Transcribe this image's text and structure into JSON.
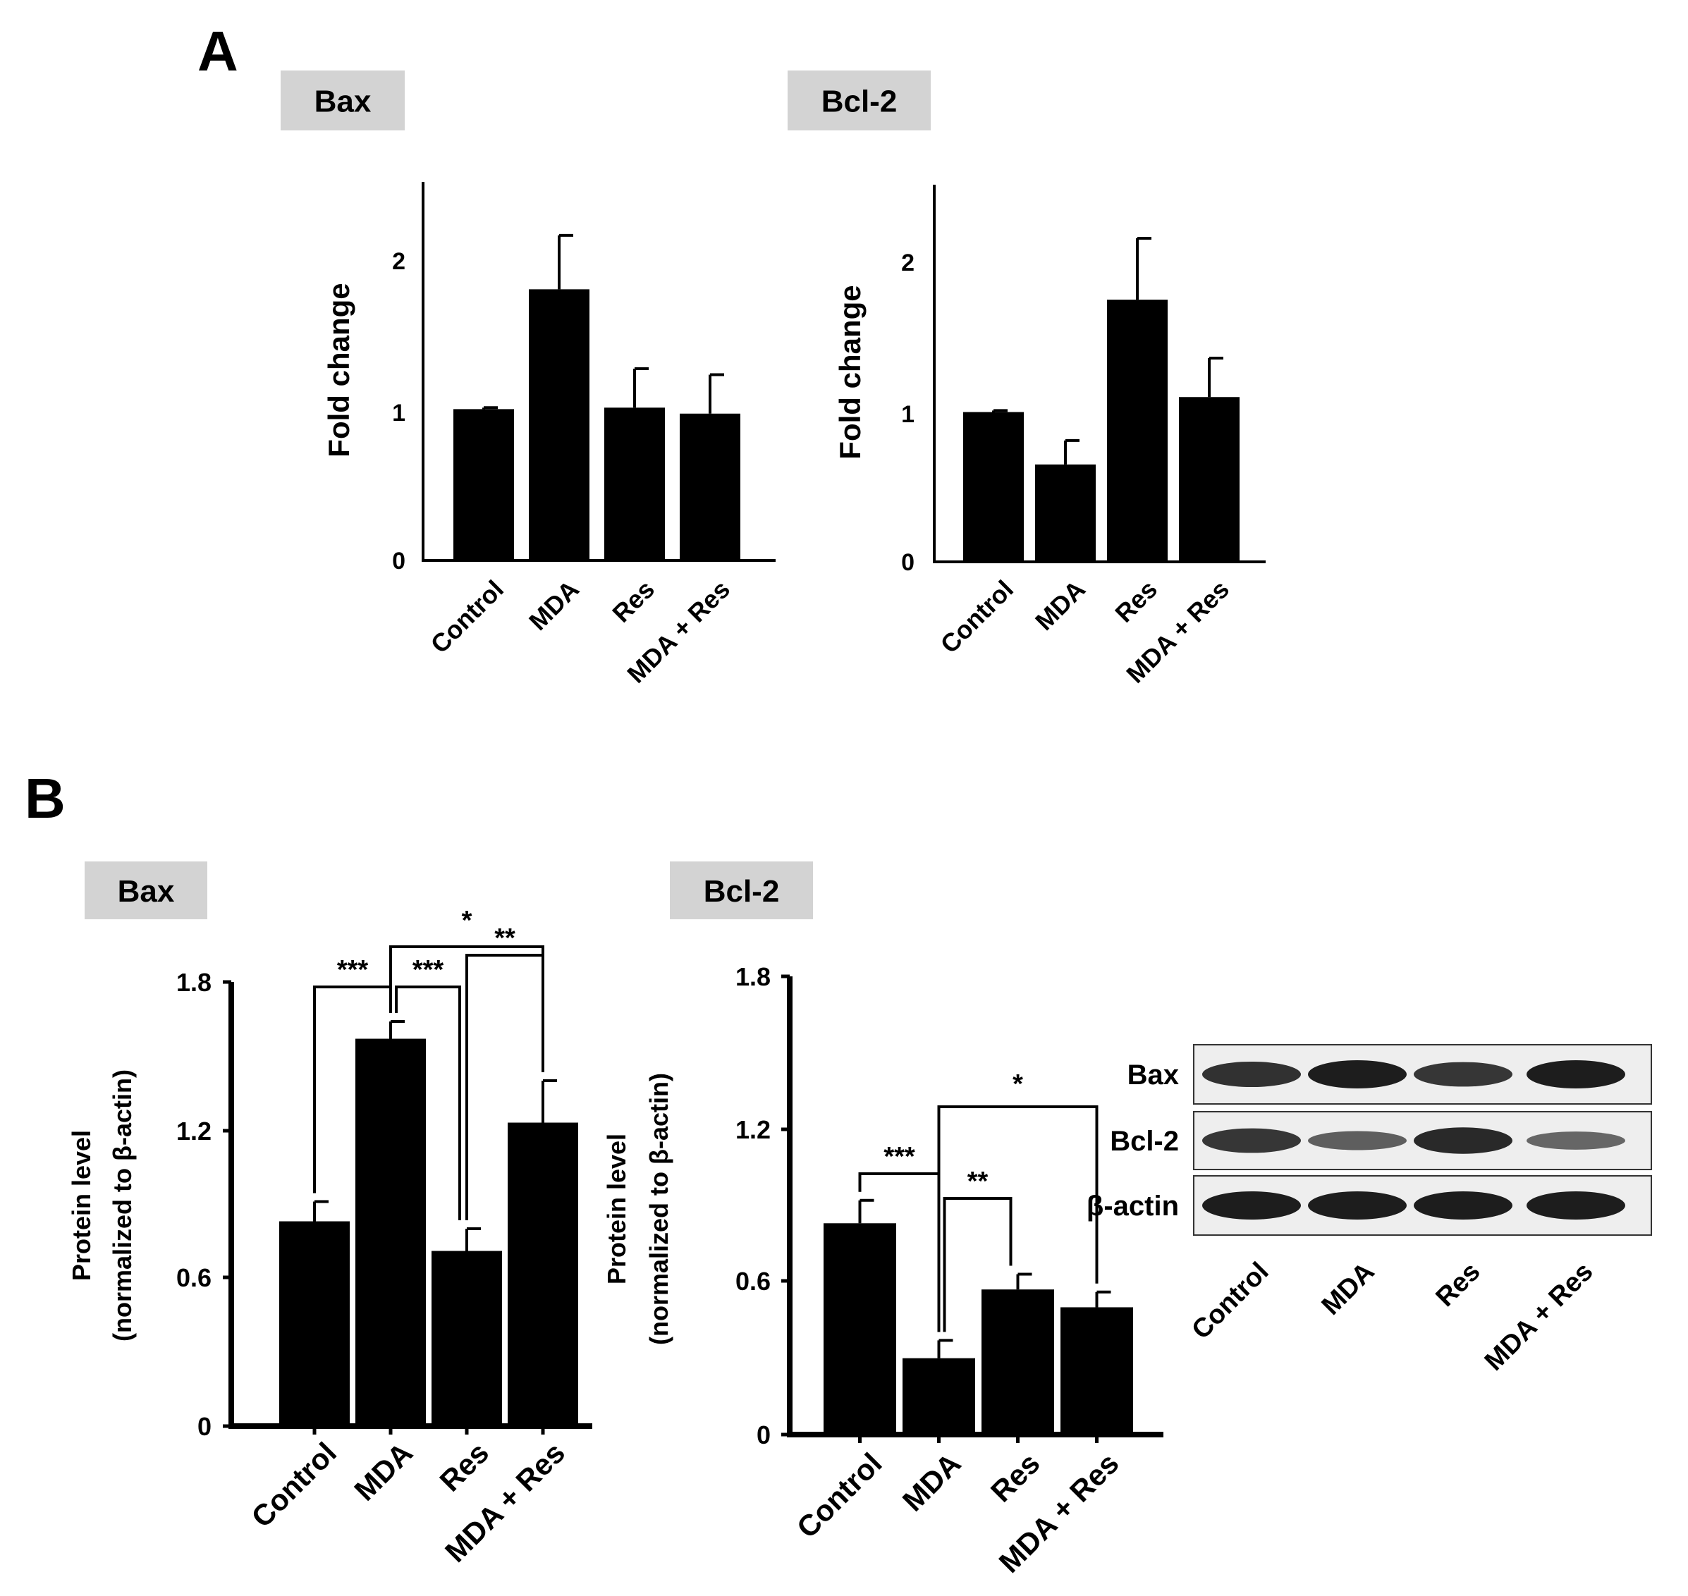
{
  "panels": [
    {
      "label": "A"
    },
    {
      "label": "B"
    }
  ],
  "blot": {
    "rows": [
      "Bax",
      "Bcl-2",
      "β-actin"
    ],
    "lanes": [
      "Control",
      "MDA",
      "Res",
      "MDA + Res"
    ],
    "band_intensity": {
      "Bax": [
        0.85,
        1.0,
        0.8,
        1.0
      ],
      "Bcl-2": [
        0.8,
        0.5,
        0.9,
        0.45
      ],
      "β-actin": [
        1.0,
        1.0,
        1.0,
        1.0
      ]
    }
  },
  "chart_data": [
    {
      "panel": "A",
      "type": "bar",
      "title": "Bax",
      "ylabel": [
        "Fold change"
      ],
      "categories": [
        "Control",
        "MDA",
        "Res",
        "MDA + Res"
      ],
      "values": [
        1.01,
        1.81,
        1.02,
        0.98
      ],
      "errors": [
        0.01,
        0.36,
        0.26,
        0.26
      ],
      "ylim": [
        0,
        2.5
      ],
      "yticks": [
        0,
        1,
        2
      ],
      "ytick_labels": [
        "0",
        "1",
        "2"
      ],
      "ytick_marks": false,
      "significance": []
    },
    {
      "panel": "A",
      "type": "bar",
      "title": "Bcl-2",
      "ylabel": [
        "Fold change"
      ],
      "categories": [
        "Control",
        "MDA",
        "Res",
        "MDA + Res"
      ],
      "values": [
        1.0,
        0.65,
        1.75,
        1.1
      ],
      "errors": [
        0.01,
        0.16,
        0.41,
        0.26
      ],
      "ylim": [
        0,
        2.5
      ],
      "yticks": [
        0,
        1,
        2
      ],
      "ytick_labels": [
        "0",
        "1",
        "2"
      ],
      "ytick_marks": false,
      "significance": []
    },
    {
      "panel": "B",
      "type": "bar",
      "title": "Bax",
      "ylabel": [
        "Protein level",
        "(normalized to β-actin)"
      ],
      "categories": [
        "Control",
        "MDA",
        "Res",
        "MDA + Res"
      ],
      "values": [
        0.83,
        1.57,
        0.71,
        1.23
      ],
      "errors": [
        0.08,
        0.07,
        0.09,
        0.17
      ],
      "ylim": [
        0,
        1.8
      ],
      "yticks": [
        0,
        0.6,
        1.2,
        1.8
      ],
      "ytick_labels": [
        "0",
        "0.6",
        "1.2",
        "1.8"
      ],
      "ytick_marks": true,
      "significance": [
        {
          "from": 0,
          "to": 1,
          "label": "***"
        },
        {
          "from": 1,
          "to": 2,
          "label": "***"
        },
        {
          "from": 2,
          "to": 3,
          "label": "**"
        },
        {
          "from": 1,
          "to": 3,
          "label": "*"
        }
      ]
    },
    {
      "panel": "B",
      "type": "bar",
      "title": "Bcl-2",
      "ylabel": [
        "Protein level",
        "(normalized to β-actin)"
      ],
      "categories": [
        "Control",
        "MDA",
        "Res",
        "MDA + Res"
      ],
      "values": [
        0.83,
        0.3,
        0.57,
        0.5
      ],
      "errors": [
        0.09,
        0.07,
        0.06,
        0.06
      ],
      "ylim": [
        0,
        1.8
      ],
      "yticks": [
        0,
        0.6,
        1.2,
        1.8
      ],
      "ytick_labels": [
        "0",
        "0.6",
        "1.2",
        "1.8"
      ],
      "ytick_marks": true,
      "significance": [
        {
          "from": 0,
          "to": 1,
          "label": "***"
        },
        {
          "from": 1,
          "to": 2,
          "label": "**"
        },
        {
          "from": 1,
          "to": 3,
          "label": "*"
        }
      ]
    }
  ]
}
